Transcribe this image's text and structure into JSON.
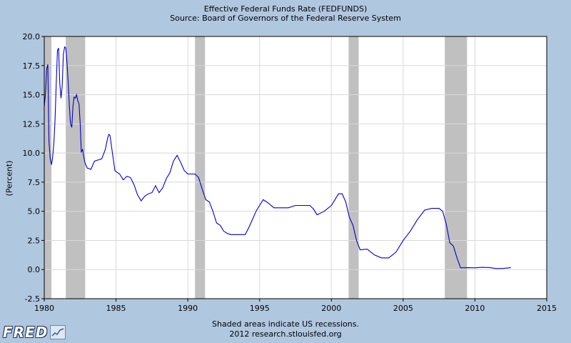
{
  "chart_data": {
    "type": "line",
    "title": "Effective Federal Funds Rate (FEDFUNDS)",
    "subtitle": "Source: Board of Governors of the Federal Reserve System",
    "ylabel": "(Percent)",
    "xlabel": "",
    "xlim": [
      1980,
      2015
    ],
    "ylim": [
      -2.5,
      20
    ],
    "x_ticks": [
      "1980",
      "1985",
      "1990",
      "1995",
      "2000",
      "2005",
      "2010",
      "2015"
    ],
    "y_ticks": [
      "-2.5",
      "0.0",
      "2.5",
      "5.0",
      "7.5",
      "10.0",
      "12.5",
      "15.0",
      "17.5",
      "20.0"
    ],
    "grid": true,
    "recessions": [
      [
        1980.0,
        1980.5
      ],
      [
        1981.5,
        1982.85
      ],
      [
        1990.5,
        1991.2
      ],
      [
        2001.2,
        2001.9
      ],
      [
        2007.9,
        2009.45
      ]
    ],
    "series": [
      {
        "color": "#0000cc",
        "x": [
          1980.0,
          1980.08,
          1980.17,
          1980.25,
          1980.33,
          1980.42,
          1980.5,
          1980.58,
          1980.67,
          1980.75,
          1980.83,
          1980.92,
          1981.0,
          1981.08,
          1981.17,
          1981.25,
          1981.33,
          1981.42,
          1981.5,
          1981.58,
          1981.67,
          1981.75,
          1981.83,
          1981.92,
          1982.0,
          1982.08,
          1982.17,
          1982.25,
          1982.33,
          1982.42,
          1982.5,
          1982.58,
          1982.67,
          1982.75,
          1982.83,
          1982.92,
          1983.0,
          1983.25,
          1983.5,
          1983.75,
          1984.0,
          1984.25,
          1984.42,
          1984.5,
          1984.58,
          1984.75,
          1984.92,
          1985.0,
          1985.25,
          1985.5,
          1985.75,
          1986.0,
          1986.25,
          1986.5,
          1986.75,
          1987.0,
          1987.25,
          1987.5,
          1987.75,
          1988.0,
          1988.25,
          1988.5,
          1988.75,
          1989.0,
          1989.25,
          1989.5,
          1989.75,
          1990.0,
          1990.5,
          1990.75,
          1991.0,
          1991.25,
          1991.5,
          1991.75,
          1992.0,
          1992.25,
          1992.5,
          1992.75,
          1993.0,
          1993.5,
          1994.0,
          1994.25,
          1994.5,
          1994.75,
          1995.0,
          1995.25,
          1995.5,
          1996.0,
          1996.5,
          1997.0,
          1997.5,
          1998.0,
          1998.5,
          1998.75,
          1999.0,
          1999.5,
          2000.0,
          2000.25,
          2000.5,
          2000.75,
          2001.0,
          2001.25,
          2001.5,
          2001.75,
          2002.0,
          2002.5,
          2003.0,
          2003.5,
          2004.0,
          2004.5,
          2005.0,
          2005.5,
          2006.0,
          2006.5,
          2007.0,
          2007.5,
          2007.75,
          2008.0,
          2008.25,
          2008.5,
          2008.75,
          2009.0,
          2009.5,
          2010.0,
          2010.5,
          2011.0,
          2011.5,
          2012.0,
          2012.5
        ],
        "values": [
          14.0,
          15.0,
          17.2,
          17.6,
          11.0,
          9.5,
          9.0,
          9.6,
          10.9,
          12.8,
          15.8,
          18.8,
          19.0,
          16.0,
          14.7,
          15.7,
          18.5,
          19.1,
          19.0,
          17.8,
          16.0,
          14.0,
          12.5,
          12.2,
          14.0,
          14.8,
          14.7,
          15.0,
          14.5,
          14.2,
          12.6,
          10.1,
          10.3,
          9.7,
          9.2,
          8.9,
          8.7,
          8.6,
          9.3,
          9.4,
          9.5,
          10.3,
          11.3,
          11.6,
          11.5,
          10.0,
          8.5,
          8.4,
          8.2,
          7.7,
          8.0,
          7.9,
          7.3,
          6.4,
          5.9,
          6.3,
          6.5,
          6.6,
          7.2,
          6.6,
          7.0,
          7.8,
          8.3,
          9.3,
          9.8,
          9.2,
          8.5,
          8.2,
          8.2,
          7.9,
          6.9,
          6.0,
          5.8,
          5.0,
          4.0,
          3.8,
          3.3,
          3.1,
          3.0,
          3.0,
          3.0,
          3.6,
          4.3,
          5.0,
          5.5,
          6.0,
          5.8,
          5.3,
          5.3,
          5.3,
          5.5,
          5.5,
          5.5,
          5.2,
          4.7,
          5.0,
          5.5,
          6.0,
          6.5,
          6.5,
          5.8,
          4.5,
          3.8,
          2.5,
          1.7,
          1.75,
          1.25,
          1.0,
          1.0,
          1.5,
          2.5,
          3.3,
          4.3,
          5.1,
          5.25,
          5.25,
          5.0,
          3.9,
          2.3,
          2.0,
          1.0,
          0.15,
          0.16,
          0.15,
          0.19,
          0.17,
          0.09,
          0.1,
          0.16
        ]
      }
    ]
  },
  "footer": {
    "note": "Shaded areas indicate US recessions.",
    "credit": "2012 research.stlouisfed.org"
  },
  "logo": {
    "text": "FRED"
  },
  "colors": {
    "background": "#b0c7e0",
    "plot_bg": "#ffffff",
    "recession": "#c0c0c0",
    "grid": "#d9d9d9",
    "line": "#0000cc"
  }
}
